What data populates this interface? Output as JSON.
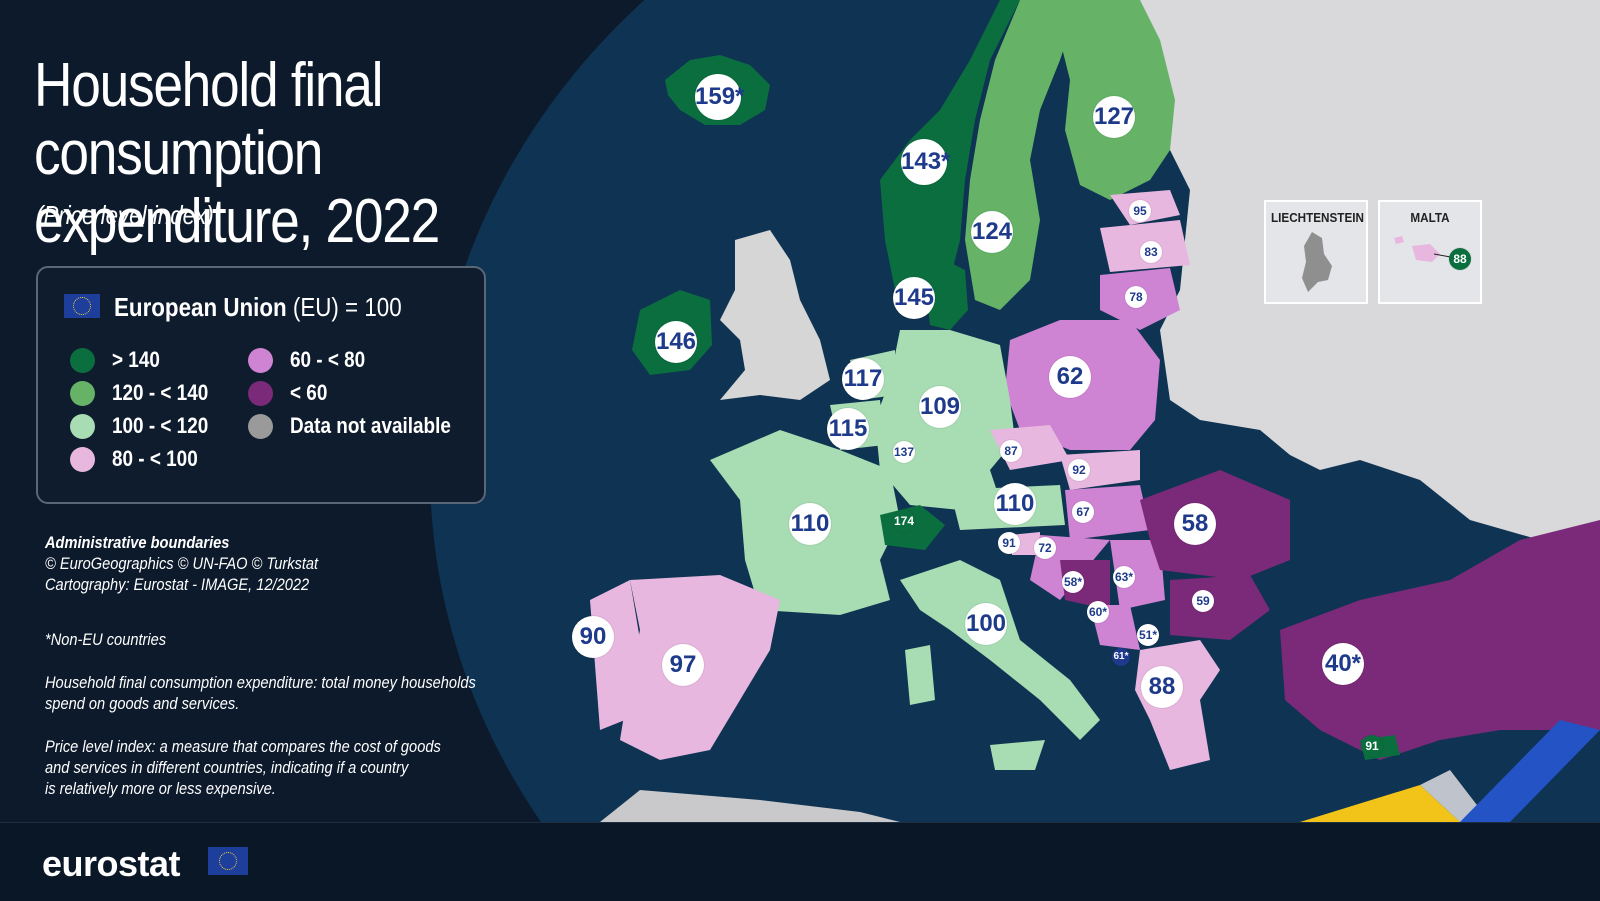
{
  "title_line1": "Household final consumption",
  "title_line2": "expenditure, 2022",
  "subtitle": "(Price level index)",
  "legend": {
    "eu_bold": "European Union",
    "eu_rest": " (EU) = 100",
    "items": [
      {
        "label": "> 140",
        "color": "#0b6e3f"
      },
      {
        "label": "120 - < 140",
        "color": "#66b368"
      },
      {
        "label": "100 - < 120",
        "color": "#a8dcb3"
      },
      {
        "label": "80 - < 100",
        "color": "#e7b7df"
      },
      {
        "label": "60 - < 80",
        "color": "#cf83d3"
      },
      {
        "label": "< 60",
        "color": "#7a2a78"
      },
      {
        "label": "Data not available",
        "color": "#9a9a9a"
      }
    ]
  },
  "notes": {
    "admin_title": "Administrative boundaries",
    "admin_credit": "© EuroGeographics © UN-FAO © Turkstat",
    "cartography": "Cartography: Eurostat - IMAGE, 12/2022",
    "non_eu": "*Non-EU countries",
    "hfce_1": "Household final consumption expenditure: total money households",
    "hfce_2": "spend on goods and services.",
    "pli_1": "Price level index: a measure that compares the cost of goods",
    "pli_2": "and services in different countries, indicating if a country",
    "pli_3": "is relatively more or less expensive."
  },
  "insets": {
    "liechtenstein": "LIECHTENSTEIN",
    "malta": "MALTA",
    "malta_value": "88"
  },
  "logo": "eurostat",
  "map_values": {
    "iceland": "159*",
    "norway": "143*",
    "finland": "127",
    "sweden": "124",
    "denmark": "145",
    "ireland": "146",
    "estonia": "95",
    "latvia": "83",
    "lithuania": "78",
    "poland": "62",
    "netherlands": "117",
    "belgium": "115",
    "luxembourg": "137",
    "germany": "109",
    "czechia": "87",
    "slovakia": "92",
    "austria": "110",
    "hungary": "67",
    "slovenia": "91",
    "croatia": "72",
    "switzerland": "174",
    "france": "110",
    "romania": "58",
    "bosnia": "58*",
    "serbia": "63*",
    "montenegro": "60*",
    "north_macedonia": "51*",
    "bulgaria": "59",
    "greece": "88",
    "italy": "100",
    "portugal": "90",
    "spain": "97",
    "turkey": "40*",
    "cyprus": "91",
    "albania": "61*"
  },
  "colors": {
    "sea": "#0f3352",
    "land_nodata": "#d6d6d6",
    "background": "#0c1a2c"
  }
}
